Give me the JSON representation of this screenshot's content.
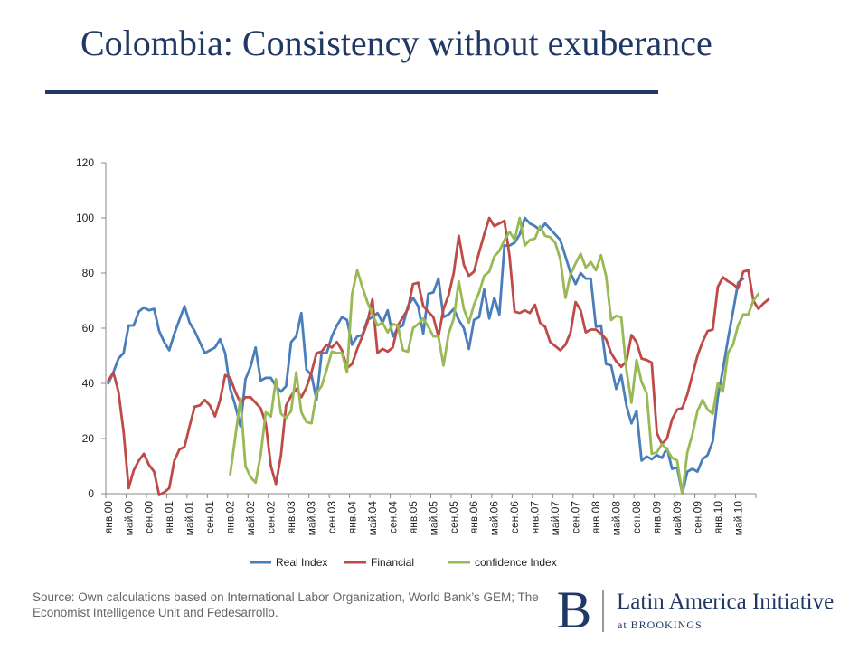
{
  "title": "Colombia: Consistency without exuberance",
  "source": "Source: Own calculations based on International Labor Organization, World Bank’s GEM; The Economist Intelligence Unit and Fedesarrollo.",
  "logo": {
    "letter": "B",
    "title": "Latin America Initiative",
    "subtitle": "at BROOKINGS"
  },
  "colors": {
    "title": "#1f3864",
    "real": "#4a7ebb",
    "financial": "#be4b48",
    "confidence": "#98b954"
  },
  "chart_data": {
    "type": "line",
    "title": "",
    "xlabel": "",
    "ylabel": "",
    "ylim": [
      0,
      120
    ],
    "yticks": [
      0,
      20,
      40,
      60,
      80,
      100,
      120
    ],
    "grid": false,
    "legend": "bottom",
    "xtick_labels": [
      "янв.00",
      "май.00",
      "сен.00",
      "янв.01",
      "май.01",
      "сен.01",
      "янв.02",
      "май.02",
      "сен.02",
      "янв.03",
      "май.03",
      "сен.03",
      "янв.04",
      "май.04",
      "сен.04",
      "янв.05",
      "май.05",
      "сен.05",
      "янв.06",
      "май.06",
      "сен.06",
      "янв.07",
      "май.07",
      "сен.07",
      "янв.08",
      "май.08",
      "сен.08",
      "янв.09",
      "май.09",
      "сен.09",
      "янв.10",
      "май.10"
    ],
    "series": [
      {
        "name": "Real Index",
        "start_index": 0,
        "values": [
          40,
          44,
          49,
          51,
          61,
          61,
          66,
          67.5,
          66.5,
          67,
          59,
          55,
          52,
          58,
          63,
          68,
          62,
          59,
          55,
          51,
          52,
          53,
          56,
          51,
          38,
          32,
          24.5,
          41.5,
          46,
          53,
          41,
          42,
          42,
          39,
          37,
          39,
          55,
          57,
          65.5,
          45,
          43,
          34,
          51,
          51,
          57,
          61,
          64,
          63,
          54,
          57,
          57.5,
          63,
          64,
          65.5,
          62,
          66.5,
          57,
          60,
          61,
          68,
          71,
          68,
          58,
          72.5,
          73,
          78,
          64,
          65,
          67,
          63,
          60,
          52.5,
          63,
          64,
          74,
          63.5,
          71,
          65,
          90,
          90,
          91,
          94,
          100,
          98,
          97,
          95.5,
          98,
          96,
          94,
          92,
          86,
          80,
          76,
          80,
          78,
          78,
          60.5,
          61,
          47,
          46.5,
          38,
          43,
          32,
          25.5,
          30,
          12,
          13.5,
          12.5,
          14,
          13,
          16.5,
          9,
          9.5,
          0,
          8,
          9,
          8,
          12.5,
          14,
          19,
          35,
          45,
          56,
          66,
          76.5,
          78
        ]
      },
      {
        "name": "Financial",
        "start_index": 0,
        "values": [
          41,
          44,
          37,
          22.5,
          2,
          8.5,
          12,
          14.5,
          10.5,
          8,
          -0.5,
          0.5,
          2,
          12,
          16,
          17,
          24.5,
          31.5,
          32,
          34,
          32,
          28,
          34,
          43,
          42,
          37,
          33,
          35,
          35,
          33,
          31,
          25.5,
          10,
          3.5,
          14,
          32,
          35.5,
          38,
          35,
          38.5,
          44,
          51,
          51.5,
          54,
          53,
          55,
          52,
          45.5,
          47,
          52.5,
          57,
          62,
          70.5,
          51,
          52.5,
          51.5,
          53,
          61,
          64,
          67,
          76,
          76.5,
          68,
          66,
          64,
          57,
          67,
          72,
          80,
          93.5,
          83,
          79,
          80.5,
          87.5,
          94,
          100,
          97,
          98,
          99,
          86,
          66,
          65.5,
          66.5,
          65.5,
          68.5,
          62,
          60.5,
          55,
          53.5,
          52,
          54,
          58.5,
          69.5,
          66.5,
          58.5,
          59.5,
          59.5,
          58,
          56,
          51,
          48,
          46,
          48,
          57.5,
          55,
          49,
          48.5,
          47.5,
          22,
          18,
          20,
          27,
          30.5,
          31,
          36,
          43,
          50,
          55,
          59,
          59.5,
          75,
          78.5,
          77,
          76,
          74.5,
          80.5,
          81,
          70,
          67,
          69,
          70.5
        ]
      },
      {
        "name": "confidence Index",
        "start_index": 24,
        "values": [
          7,
          20.5,
          34.5,
          10,
          6,
          4,
          14,
          29.5,
          28,
          41.5,
          29,
          27.5,
          30,
          44,
          29.5,
          26,
          25.5,
          36.5,
          39,
          45,
          51.5,
          51,
          51,
          44,
          72.5,
          81,
          75,
          69.5,
          65,
          61,
          62,
          58.5,
          61.5,
          61,
          52,
          51.5,
          60,
          61.5,
          63.5,
          60.5,
          57,
          57,
          46.5,
          58,
          63.5,
          77,
          67,
          62,
          68.5,
          73,
          79,
          80.5,
          86,
          88,
          92,
          95,
          92,
          100,
          90,
          92,
          92.5,
          97,
          93.5,
          93,
          91,
          85,
          71,
          79.5,
          83.5,
          87,
          82,
          84,
          81,
          86.5,
          79,
          63,
          64.5,
          64,
          45,
          33,
          48.5,
          40.5,
          36.5,
          14.5,
          15,
          18,
          16,
          13,
          12,
          0,
          15,
          21.5,
          30,
          34,
          30.5,
          29,
          40,
          37,
          51,
          54,
          61,
          65,
          65,
          70,
          72.5
        ]
      }
    ]
  }
}
